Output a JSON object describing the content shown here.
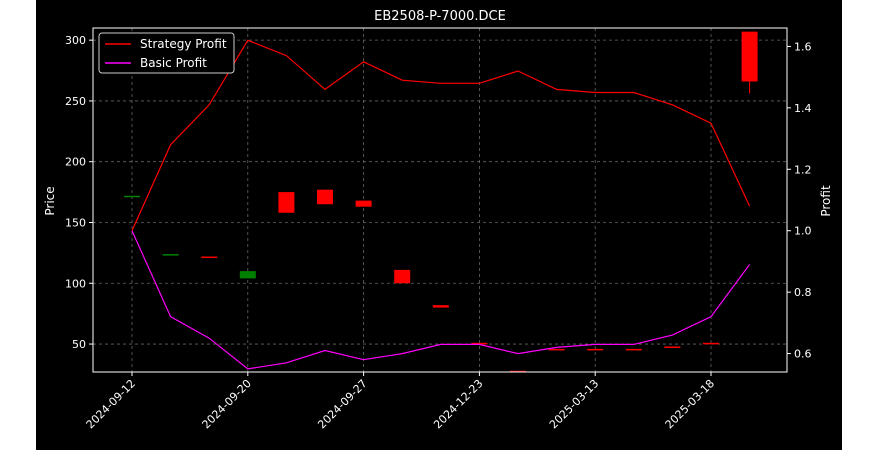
{
  "chart_data": {
    "type": "candlestick+line",
    "title": "EB2508-P-7000.DCE",
    "ylabel_left": "Price",
    "ylabel_right": "Profit",
    "xlabel": "",
    "x_tick_labels": [
      "2024-09-12",
      "2024-09-20",
      "2024-09-27",
      "2024-12-23",
      "2025-03-13",
      "2025-03-18"
    ],
    "y_left_ticks": [
      50,
      100,
      150,
      200,
      250,
      300
    ],
    "y_right_ticks": [
      "0.6",
      "0.8",
      "1.0",
      "1.2",
      "1.4",
      "1.6"
    ],
    "ylim_left": [
      27,
      310
    ],
    "ylim_right": [
      0.54,
      1.66
    ],
    "grid": true,
    "legend_position": "top-left",
    "colors": {
      "background": "#000000",
      "strategy": "#ff0000",
      "basic": "#ff00ff",
      "up_candle": "#008000",
      "down_candle": "#ff0000",
      "grid": "#666666",
      "text": "#ffffff"
    },
    "candles": [
      {
        "i": 0,
        "open": 171,
        "close": 172
      },
      {
        "i": 1,
        "open": 124,
        "close": 124
      },
      {
        "i": 2,
        "open": 122,
        "close": 121
      },
      {
        "i": 3,
        "open": 104,
        "close": 110
      },
      {
        "i": 4,
        "open": 175,
        "close": 158
      },
      {
        "i": 5,
        "open": 177,
        "close": 165
      },
      {
        "i": 6,
        "open": 168,
        "close": 163
      },
      {
        "i": 7,
        "open": 111,
        "close": 100
      },
      {
        "i": 8,
        "open": 82,
        "close": 80
      },
      {
        "i": 9,
        "open": 51,
        "close": 50
      },
      {
        "i": 10,
        "open": 28,
        "close": 27
      },
      {
        "i": 11,
        "open": 46,
        "close": 45
      },
      {
        "i": 12,
        "open": 46,
        "close": 45
      },
      {
        "i": 13,
        "open": 46,
        "close": 45
      },
      {
        "i": 14,
        "open": 48,
        "close": 47
      },
      {
        "i": 15,
        "open": 51,
        "close": 50
      },
      {
        "i": 16,
        "open": 307,
        "close": 266
      }
    ],
    "series": [
      {
        "name": "Strategy Profit",
        "color": "#ff0000",
        "values": [
          1.0,
          1.28,
          1.41,
          1.62,
          1.57,
          1.46,
          1.55,
          1.49,
          1.48,
          1.48,
          1.52,
          1.46,
          1.45,
          1.45,
          1.41,
          1.35,
          1.08
        ]
      },
      {
        "name": "Basic Profit",
        "color": "#ff00ff",
        "values": [
          1.0,
          0.72,
          0.65,
          0.55,
          0.57,
          0.61,
          0.58,
          0.6,
          0.63,
          0.63,
          0.6,
          0.62,
          0.63,
          0.63,
          0.66,
          0.72,
          0.89
        ]
      }
    ]
  }
}
